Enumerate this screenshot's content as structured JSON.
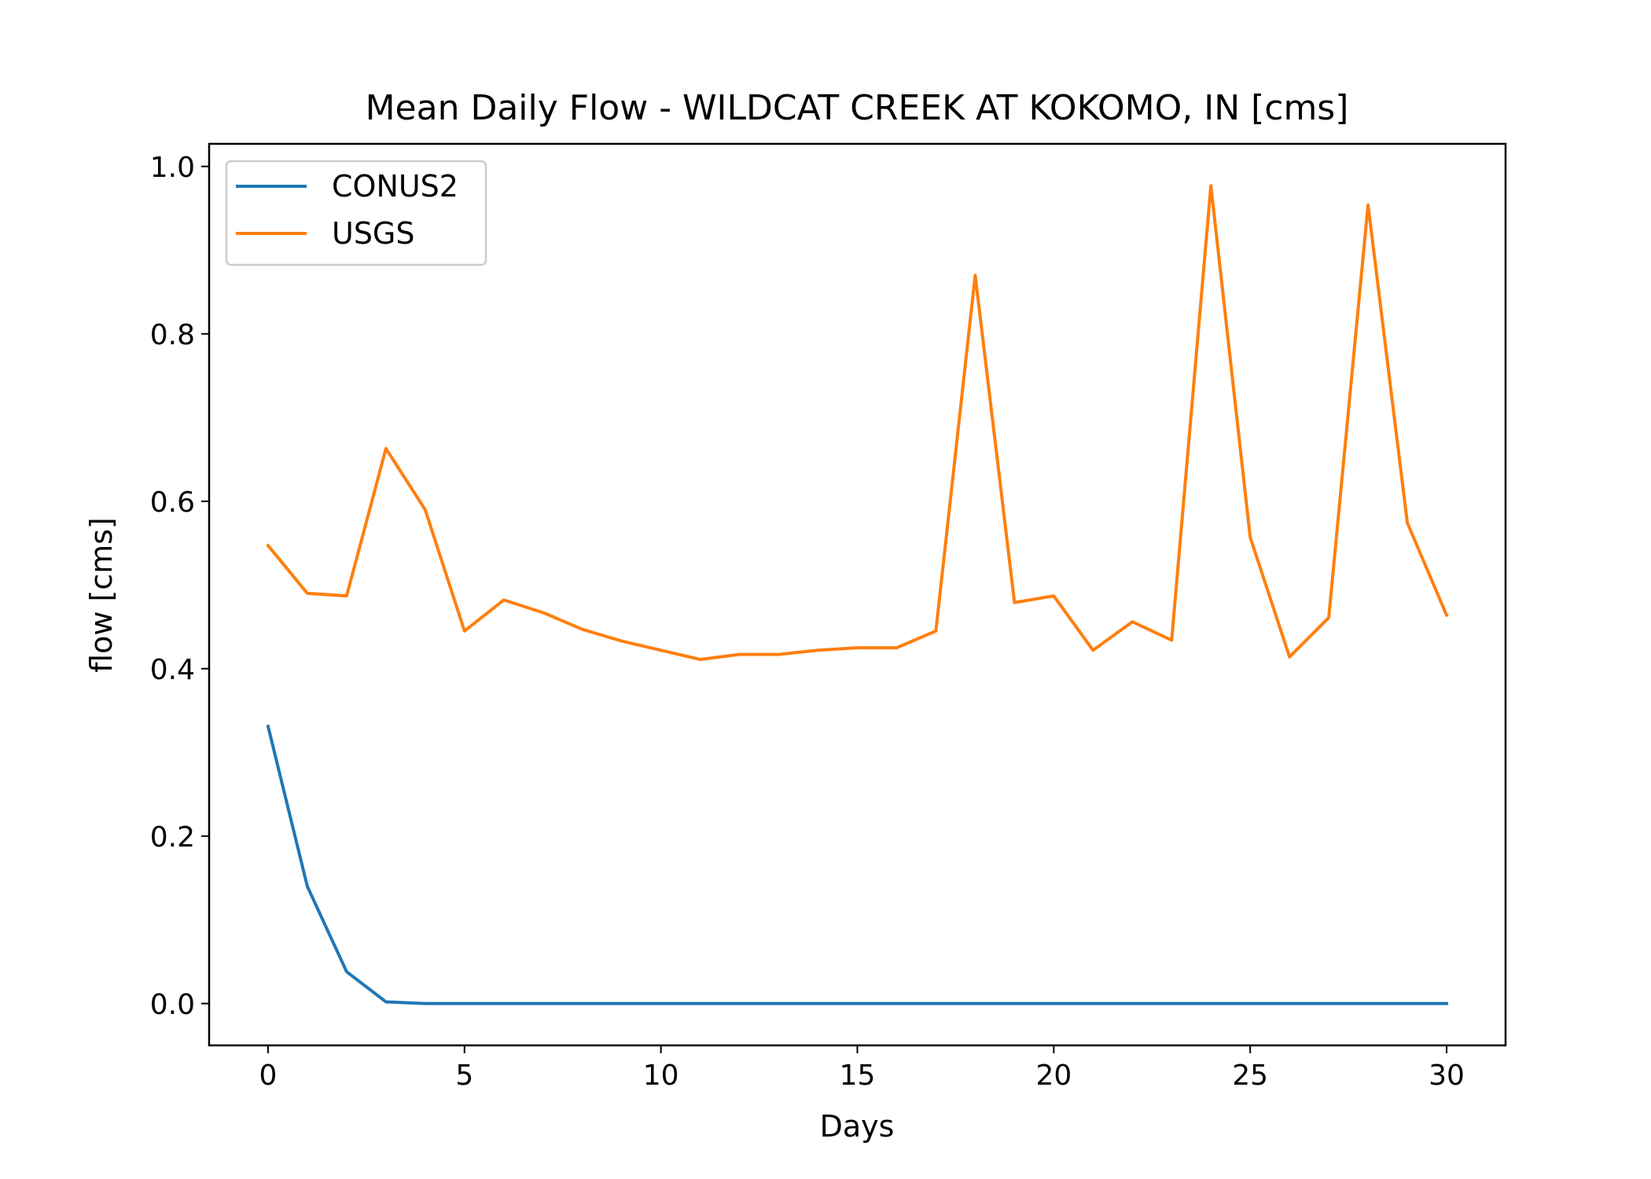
{
  "chart_data": {
    "type": "line",
    "title": "Mean Daily Flow - WILDCAT CREEK AT KOKOMO, IN [cms]",
    "xlabel": "Days",
    "ylabel": "flow [cms]",
    "xlim": [
      -1.5,
      31.5
    ],
    "ylim": [
      -0.05,
      1.027
    ],
    "xticks": [
      0,
      5,
      10,
      15,
      20,
      25,
      30
    ],
    "xtick_labels": [
      "0",
      "5",
      "10",
      "15",
      "20",
      "25",
      "30"
    ],
    "yticks": [
      0.0,
      0.2,
      0.4,
      0.6,
      0.8,
      1.0
    ],
    "ytick_labels": [
      "0.0",
      "0.2",
      "0.4",
      "0.6",
      "0.8",
      "1.0"
    ],
    "grid": false,
    "legend_position": "upper left",
    "x": [
      0,
      1,
      2,
      3,
      4,
      5,
      6,
      7,
      8,
      9,
      10,
      11,
      12,
      13,
      14,
      15,
      16,
      17,
      18,
      19,
      20,
      21,
      22,
      23,
      24,
      25,
      26,
      27,
      28,
      29,
      30
    ],
    "series": [
      {
        "name": "CONUS2",
        "color": "#1f77b4",
        "values": [
          0.331,
          0.14,
          0.038,
          0.002,
          0.0,
          0.0,
          0.0,
          0.0,
          0.0,
          0.0,
          0.0,
          0.0,
          0.0,
          0.0,
          0.0,
          0.0,
          0.0,
          0.0,
          0.0,
          0.0,
          0.0,
          0.0,
          0.0,
          0.0,
          0.0,
          0.0,
          0.0,
          0.0,
          0.0,
          0.0,
          0.0
        ]
      },
      {
        "name": "USGS",
        "color": "#ff7f0e",
        "values": [
          0.547,
          0.49,
          0.487,
          0.663,
          0.59,
          0.445,
          0.482,
          0.467,
          0.447,
          0.433,
          0.422,
          0.411,
          0.417,
          0.417,
          0.422,
          0.425,
          0.425,
          0.445,
          0.87,
          0.479,
          0.487,
          0.422,
          0.456,
          0.434,
          0.977,
          0.557,
          0.414,
          0.461,
          0.954,
          0.574,
          0.464
        ]
      }
    ]
  }
}
